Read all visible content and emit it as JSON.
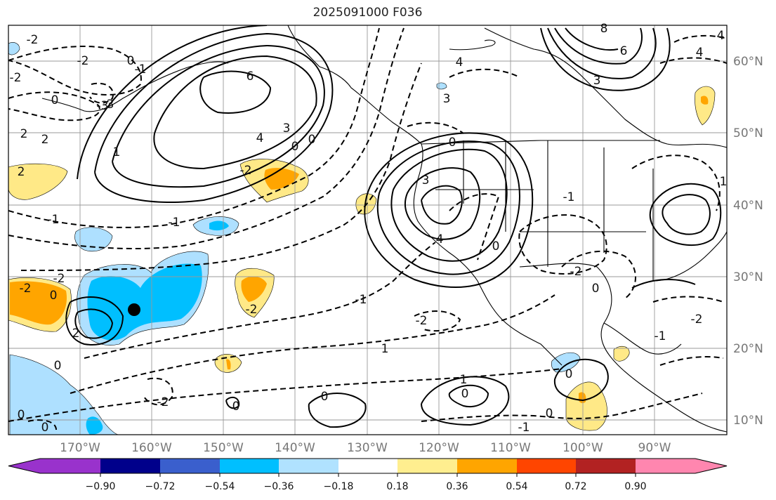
{
  "title": "2025091000 F036",
  "map": {
    "lon_labels": [
      "170°W",
      "160°W",
      "150°W",
      "140°W",
      "130°W",
      "120°W",
      "110°W",
      "100°W",
      "90°W"
    ],
    "lat_labels": [
      "60°N",
      "50°N",
      "40°N",
      "30°N",
      "20°N",
      "10°N"
    ],
    "contour_labels": [
      "-2",
      "-2",
      "0",
      "-2",
      "0",
      "2",
      "-3",
      "-1",
      "2",
      "1",
      "6",
      "4",
      "3",
      "0",
      "0",
      "-1",
      "-1",
      "-2",
      "-2",
      "0",
      "-2",
      "-1",
      "-2",
      "4",
      "3",
      "0",
      "3",
      "4",
      "0",
      "1",
      "0",
      "1",
      "-2",
      "0",
      "-1",
      "0",
      "8",
      "6",
      "3",
      "4",
      "4",
      "-3",
      "2",
      "-2",
      "0",
      "0",
      "2",
      "0",
      "0",
      "-2",
      "-1",
      "0",
      "1",
      "-1",
      "-2",
      "0"
    ],
    "marker": {
      "type": "storm-center",
      "color": "#000000"
    },
    "shading_colors": {
      "deep_blue": "#00bfff",
      "light_blue": "#aee0ff",
      "yellow": "#ffe987",
      "orange": "#ffa500"
    }
  },
  "colorbar": {
    "colors": [
      "#9932cc",
      "#00008b",
      "#3a5fcd",
      "#00bfff",
      "#b0e2ff",
      "#ffffff",
      "#ffee8f",
      "#ffa500",
      "#ff4500",
      "#b22222",
      "#ff86af"
    ],
    "tick_labels": [
      "−0.90",
      "−0.72",
      "−0.54",
      "−0.36",
      "−0.18",
      "0.18",
      "0.36",
      "0.54",
      "0.72",
      "0.90"
    ]
  }
}
